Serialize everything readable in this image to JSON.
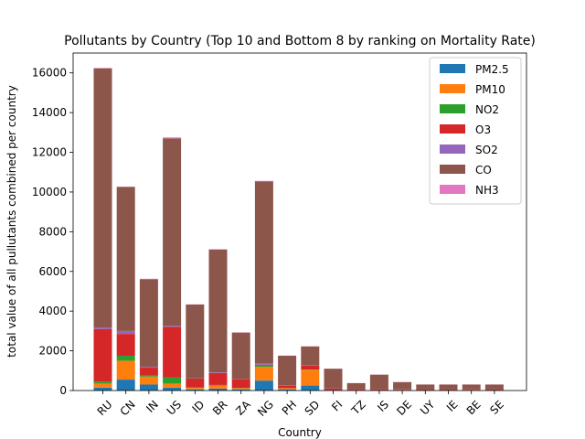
{
  "chart_data": {
    "type": "bar",
    "stacked": true,
    "title": "Pollutants by Country (Top 10 and Bottom 8 by ranking on Mortality Rate)",
    "xlabel": "Country",
    "ylabel": "total value of all pullutants combined per country",
    "ylim": [
      0,
      17000
    ],
    "yticks": [
      0,
      2000,
      4000,
      6000,
      8000,
      10000,
      12000,
      14000,
      16000
    ],
    "legend_position": "top-right",
    "grid": false,
    "categories": [
      "RU",
      "CN",
      "IN",
      "US",
      "ID",
      "BR",
      "ZA",
      "NG",
      "PH",
      "SD",
      "FI",
      "TZ",
      "IS",
      "DE",
      "UY",
      "IE",
      "BE",
      "SE"
    ],
    "series": [
      {
        "name": "PM2.5",
        "color": "#1f77b4",
        "values": [
          150,
          550,
          300,
          150,
          50,
          100,
          50,
          500,
          50,
          250,
          10,
          10,
          5,
          10,
          5,
          5,
          10,
          5
        ]
      },
      {
        "name": "PM10",
        "color": "#ff7f0e",
        "values": [
          200,
          950,
          400,
          200,
          80,
          150,
          60,
          700,
          60,
          800,
          10,
          10,
          10,
          10,
          5,
          5,
          10,
          5
        ]
      },
      {
        "name": "NO2",
        "color": "#2ca02c",
        "values": [
          100,
          250,
          50,
          300,
          20,
          30,
          20,
          50,
          10,
          10,
          5,
          5,
          5,
          10,
          5,
          5,
          10,
          5
        ]
      },
      {
        "name": "O3",
        "color": "#d62728",
        "values": [
          2650,
          1100,
          400,
          2550,
          450,
          600,
          450,
          50,
          120,
          200,
          80,
          40,
          40,
          30,
          30,
          30,
          30,
          30
        ]
      },
      {
        "name": "SO2",
        "color": "#9467bd",
        "values": [
          80,
          150,
          50,
          60,
          10,
          30,
          10,
          50,
          10,
          10,
          5,
          5,
          5,
          10,
          5,
          5,
          5,
          5
        ]
      },
      {
        "name": "CO",
        "color": "#8c564b",
        "values": [
          13050,
          7250,
          4400,
          9440,
          3720,
          6190,
          2330,
          9190,
          1500,
          950,
          990,
          300,
          735,
          355,
          250,
          250,
          235,
          250
        ]
      },
      {
        "name": "NH3",
        "color": "#e377c2",
        "values": [
          20,
          20,
          30,
          50,
          10,
          20,
          10,
          20,
          10,
          10,
          5,
          5,
          5,
          5,
          5,
          5,
          5,
          5
        ]
      }
    ]
  }
}
